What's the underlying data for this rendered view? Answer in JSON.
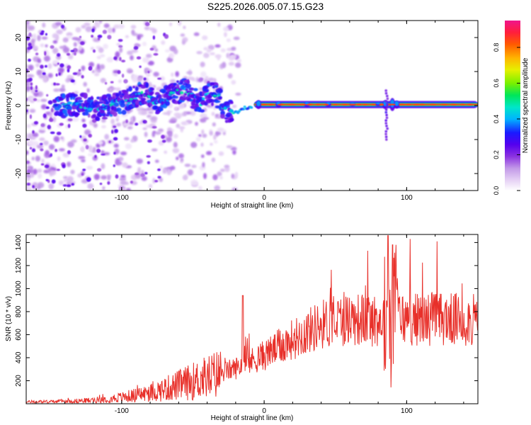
{
  "title": "S225.2026.005.07.15.G23",
  "colors": {
    "axis": "#000000",
    "snr_line": "#e8302a",
    "background": "#ffffff"
  },
  "chart_data": [
    {
      "type": "heatmap",
      "name": "spectrogram",
      "xlabel": "Height of straight line (km)",
      "ylabel": "Frequency (Hz)",
      "xlim": [
        -167,
        150
      ],
      "ylim": [
        -25,
        25
      ],
      "xticks": [
        -100,
        0,
        100
      ],
      "yticks": [
        -20,
        -10,
        0,
        10,
        20
      ],
      "colorbar": {
        "label": "Normalized spectral amplitude",
        "range": [
          0,
          0.95
        ],
        "ticks": [
          0.0,
          0.2,
          0.4,
          0.6,
          0.8
        ],
        "colormap": [
          "#ffffff",
          "#e6d2f5",
          "#c39ae8",
          "#8c33e0",
          "#5500ee",
          "#1a1aff",
          "#00b4ff",
          "#00e6c8",
          "#00e65a",
          "#78f000",
          "#e6f000",
          "#ffb400",
          "#ff5a00",
          "#ff1e3c",
          "#f0148c"
        ]
      },
      "ridge": [
        {
          "x": -145,
          "f": -0.5
        },
        {
          "x": -135,
          "f": 0.5
        },
        {
          "x": -125,
          "f": 0.0
        },
        {
          "x": -115,
          "f": -1.0
        },
        {
          "x": -105,
          "f": 0.5
        },
        {
          "x": -95,
          "f": 1.5
        },
        {
          "x": -85,
          "f": 4.0
        },
        {
          "x": -80,
          "f": 2.0
        },
        {
          "x": -75,
          "f": 1.0
        },
        {
          "x": -65,
          "f": 3.0
        },
        {
          "x": -55,
          "f": 5.0
        },
        {
          "x": -45,
          "f": 0.5
        },
        {
          "x": -38,
          "f": 4.0
        },
        {
          "x": -32,
          "f": 2.5
        },
        {
          "x": -28,
          "f": -1.5
        },
        {
          "x": -20,
          "f": -2.0
        },
        {
          "x": -12,
          "f": -0.5
        },
        {
          "x": 0,
          "f": 0.5
        },
        {
          "x": 20,
          "f": 0.0
        },
        {
          "x": 40,
          "f": 0.5
        },
        {
          "x": 60,
          "f": 0.0
        },
        {
          "x": 80,
          "f": 0.0
        },
        {
          "x": 88,
          "f": 1.0
        },
        {
          "x": 100,
          "f": 0.0
        },
        {
          "x": 150,
          "f": 0.0
        }
      ]
    },
    {
      "type": "line",
      "name": "snr",
      "xlabel": "Height of straight line (km)",
      "ylabel": "SNR (10 * v/v)",
      "xlim": [
        -167,
        150
      ],
      "ylim": [
        0,
        1470
      ],
      "xticks": [
        -100,
        0,
        100
      ],
      "yticks": [
        200,
        400,
        600,
        800,
        1000,
        1200,
        1400
      ],
      "envelope": {
        "x": [
          -167,
          -140,
          -120,
          -100,
          -80,
          -60,
          -40,
          -20,
          0,
          20,
          40,
          60,
          80,
          90,
          100,
          120,
          150
        ],
        "y": [
          15,
          20,
          30,
          55,
          95,
          160,
          230,
          310,
          420,
          560,
          690,
          740,
          720,
          760,
          730,
          740,
          720
        ]
      },
      "spikes": [
        {
          "x": -15,
          "value": 940
        },
        {
          "x": 87,
          "value": 1460
        },
        {
          "x": 90,
          "value": 1380
        }
      ]
    }
  ]
}
